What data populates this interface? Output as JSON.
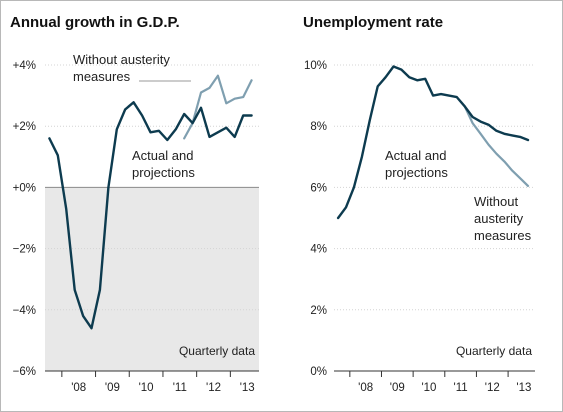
{
  "chart_data": [
    {
      "type": "line",
      "title": "Annual growth in G.D.P.",
      "xlabel": "",
      "ylabel": "",
      "ylim": [
        -6,
        4
      ],
      "y_ticks": [
        "+4%",
        "+2%",
        "+0%",
        "−2%",
        "−4%",
        "−6%"
      ],
      "y_tick_values": [
        4,
        2,
        0,
        -2,
        -4,
        -6
      ],
      "x_ticks": [
        "'08",
        "'09",
        "'10",
        "'11",
        "'12",
        "'13"
      ],
      "x_tick_values": [
        2008,
        2009,
        2010,
        2011,
        2012,
        2013
      ],
      "xlim": [
        2007.5,
        2013.85
      ],
      "shaded_region": "below zero",
      "note": "Quarterly data",
      "series": [
        {
          "label": "Actual and projections",
          "color": "#0d3b4f",
          "x": [
            2007.63,
            2007.88,
            2008.13,
            2008.38,
            2008.63,
            2008.88,
            2009.13,
            2009.38,
            2009.63,
            2009.88,
            2010.13,
            2010.38,
            2010.63,
            2010.88,
            2011.13,
            2011.38,
            2011.63,
            2011.88,
            2012.13,
            2012.38,
            2012.63,
            2012.88,
            2013.13,
            2013.38,
            2013.63
          ],
          "values": [
            1.6,
            1.05,
            -0.7,
            -3.35,
            -4.2,
            -4.6,
            -3.35,
            0.0,
            1.9,
            2.55,
            2.78,
            2.35,
            1.8,
            1.85,
            1.55,
            1.9,
            2.4,
            2.1,
            2.6,
            1.65,
            1.8,
            1.95,
            1.65,
            2.35,
            2.35
          ]
        },
        {
          "label": "Without austerity measures",
          "color": "#7f9fb0",
          "x": [
            2011.63,
            2011.88,
            2012.13,
            2012.38,
            2012.63,
            2012.88,
            2013.13,
            2013.38,
            2013.63
          ],
          "values": [
            1.6,
            2.1,
            3.1,
            3.25,
            3.65,
            2.75,
            2.9,
            2.95,
            3.5
          ]
        }
      ]
    },
    {
      "type": "line",
      "title": "Unemployment rate",
      "xlabel": "",
      "ylabel": "",
      "ylim": [
        0,
        10
      ],
      "y_ticks": [
        "10%",
        "8%",
        "6%",
        "4%",
        "2%",
        "0%"
      ],
      "y_tick_values": [
        10,
        8,
        6,
        4,
        2,
        0
      ],
      "x_ticks": [
        "'08",
        "'09",
        "'10",
        "'11",
        "'12",
        "'13"
      ],
      "x_tick_values": [
        2008,
        2009,
        2010,
        2011,
        2012,
        2013
      ],
      "xlim": [
        2007.5,
        2013.85
      ],
      "note": "Quarterly data",
      "series": [
        {
          "label": "Actual and projections",
          "color": "#0d3b4f",
          "x": [
            2007.63,
            2007.88,
            2008.13,
            2008.38,
            2008.63,
            2008.88,
            2009.13,
            2009.38,
            2009.63,
            2009.88,
            2010.13,
            2010.38,
            2010.63,
            2010.88,
            2011.13,
            2011.38,
            2011.63,
            2011.88,
            2012.13,
            2012.38,
            2012.63,
            2012.88,
            2013.13,
            2013.38,
            2013.63
          ],
          "values": [
            5.0,
            5.35,
            6.0,
            7.0,
            8.2,
            9.3,
            9.6,
            9.95,
            9.85,
            9.6,
            9.5,
            9.55,
            9.0,
            9.05,
            9.0,
            8.95,
            8.65,
            8.3,
            8.15,
            8.05,
            7.85,
            7.75,
            7.7,
            7.65,
            7.55
          ]
        },
        {
          "label": "Without austerity measures",
          "color": "#7f9fb0",
          "x": [
            2011.63,
            2011.88,
            2012.13,
            2012.38,
            2012.63,
            2012.88,
            2013.13,
            2013.38,
            2013.63
          ],
          "values": [
            8.65,
            8.1,
            7.75,
            7.4,
            7.1,
            6.85,
            6.55,
            6.3,
            6.05
          ]
        }
      ]
    }
  ],
  "annotations": {
    "growth_without_line1": "Without austerity",
    "growth_without_line2": "measures",
    "growth_actual_line1": "Actual and",
    "growth_actual_line2": "projections",
    "unemp_actual_line1": "Actual and",
    "unemp_actual_line2": "projections",
    "unemp_without_line1": "Without",
    "unemp_without_line2": "austerity",
    "unemp_without_line3": "measures"
  },
  "colors": {
    "actual": "#0d3b4f",
    "without": "#7f9fb0",
    "shade": "#e8e8e8",
    "axis": "#333333",
    "grid": "#d4d4d4"
  }
}
